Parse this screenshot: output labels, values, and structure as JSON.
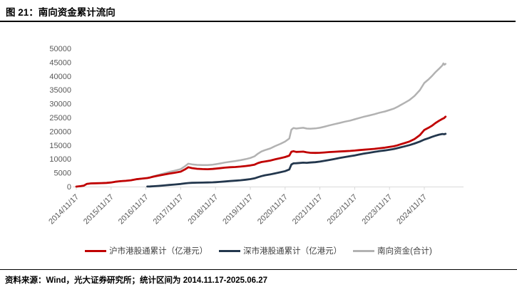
{
  "header": {
    "title": "图 21：南向资金累计流向"
  },
  "footer": {
    "text": "资料来源：Wind，光大证券研究所；统计区间为 2014.11.17-2025.06.27"
  },
  "colors": {
    "sh_red": "#C00000",
    "sz_navy": "#23374D",
    "total_gray": "#B2B2B2",
    "axis_text": "#595959",
    "axis_line": "#D9D9D9",
    "rule_black": "#000000"
  },
  "legend": {
    "items": [
      {
        "label": "沪市港股通累计（亿港元）",
        "color": "#C00000"
      },
      {
        "label": "深市港股通累计（亿港元）",
        "color": "#23374D"
      },
      {
        "label": "南向资金(合计)",
        "color": "#B2B2B2"
      }
    ]
  },
  "chart_data": {
    "type": "line",
    "title": "南向资金累计流向",
    "xlabel": "",
    "ylabel": "",
    "ylim": [
      0,
      50000
    ],
    "yticks": [
      0,
      5000,
      10000,
      15000,
      20000,
      25000,
      30000,
      35000,
      40000,
      45000,
      50000
    ],
    "x_range_years": [
      2014.82,
      2025.6
    ],
    "xtick_positions": [
      2014.88,
      2015.88,
      2016.88,
      2017.88,
      2018.88,
      2019.88,
      2020.88,
      2021.88,
      2022.88,
      2023.88,
      2024.88
    ],
    "xtick_labels": [
      "2014/11/17",
      "2015/11/17",
      "2016/11/17",
      "2017/11/17",
      "2018/11/17",
      "2019/11/17",
      "2020/11/17",
      "2021/11/17",
      "2022/11/17",
      "2023/11/17",
      "2024/11/17"
    ],
    "grid": false,
    "legend_position": "bottom",
    "unit": "亿港元",
    "series": [
      {
        "name": "南向资金(合计)",
        "color": "#B2B2B2",
        "width": 2.5,
        "points": [
          [
            2014.88,
            0
          ],
          [
            2015.0,
            150
          ],
          [
            2015.1,
            350
          ],
          [
            2015.18,
            950
          ],
          [
            2015.3,
            1150
          ],
          [
            2015.45,
            1200
          ],
          [
            2015.6,
            1250
          ],
          [
            2015.75,
            1350
          ],
          [
            2015.88,
            1500
          ],
          [
            2016.0,
            1750
          ],
          [
            2016.15,
            1950
          ],
          [
            2016.3,
            2100
          ],
          [
            2016.45,
            2300
          ],
          [
            2016.6,
            2650
          ],
          [
            2016.75,
            2850
          ],
          [
            2016.92,
            3120
          ],
          [
            2017.0,
            3360
          ],
          [
            2017.1,
            3730
          ],
          [
            2017.25,
            4260
          ],
          [
            2017.4,
            4770
          ],
          [
            2017.55,
            5300
          ],
          [
            2017.7,
            5760
          ],
          [
            2017.88,
            6350
          ],
          [
            2018.0,
            7350
          ],
          [
            2018.1,
            8300
          ],
          [
            2018.2,
            8060
          ],
          [
            2018.35,
            7870
          ],
          [
            2018.5,
            7800
          ],
          [
            2018.65,
            7800
          ],
          [
            2018.8,
            7950
          ],
          [
            2018.88,
            8100
          ],
          [
            2019.0,
            8350
          ],
          [
            2019.15,
            8700
          ],
          [
            2019.3,
            9000
          ],
          [
            2019.45,
            9250
          ],
          [
            2019.6,
            9550
          ],
          [
            2019.75,
            9950
          ],
          [
            2019.88,
            10350
          ],
          [
            2020.0,
            10950
          ],
          [
            2020.1,
            11900
          ],
          [
            2020.2,
            12700
          ],
          [
            2020.3,
            13200
          ],
          [
            2020.45,
            13800
          ],
          [
            2020.6,
            14700
          ],
          [
            2020.75,
            15500
          ],
          [
            2020.88,
            16300
          ],
          [
            2021.0,
            17400
          ],
          [
            2021.06,
            20600
          ],
          [
            2021.12,
            21200
          ],
          [
            2021.2,
            21000
          ],
          [
            2021.3,
            21150
          ],
          [
            2021.4,
            21300
          ],
          [
            2021.5,
            21000
          ],
          [
            2021.6,
            20950
          ],
          [
            2021.75,
            21050
          ],
          [
            2021.88,
            21300
          ],
          [
            2022.0,
            21650
          ],
          [
            2022.15,
            22150
          ],
          [
            2022.3,
            22600
          ],
          [
            2022.45,
            23050
          ],
          [
            2022.6,
            23500
          ],
          [
            2022.75,
            23900
          ],
          [
            2022.88,
            24350
          ],
          [
            2023.0,
            24800
          ],
          [
            2023.15,
            25300
          ],
          [
            2023.3,
            25750
          ],
          [
            2023.45,
            26200
          ],
          [
            2023.6,
            26750
          ],
          [
            2023.75,
            27200
          ],
          [
            2023.88,
            27700
          ],
          [
            2024.0,
            28200
          ],
          [
            2024.1,
            28800
          ],
          [
            2024.2,
            29500
          ],
          [
            2024.3,
            30200
          ],
          [
            2024.45,
            31300
          ],
          [
            2024.6,
            32800
          ],
          [
            2024.75,
            34900
          ],
          [
            2024.88,
            37500
          ],
          [
            2025.0,
            38800
          ],
          [
            2025.1,
            40000
          ],
          [
            2025.2,
            41400
          ],
          [
            2025.3,
            42600
          ],
          [
            2025.4,
            43900
          ],
          [
            2025.43,
            44600
          ],
          [
            2025.46,
            44100
          ],
          [
            2025.49,
            44400
          ]
        ]
      },
      {
        "name": "深市港股通累计（亿港元）",
        "color": "#23374D",
        "width": 2.8,
        "points": [
          [
            2016.92,
            20
          ],
          [
            2017.0,
            60
          ],
          [
            2017.1,
            130
          ],
          [
            2017.25,
            260
          ],
          [
            2017.4,
            420
          ],
          [
            2017.55,
            600
          ],
          [
            2017.7,
            760
          ],
          [
            2017.88,
            950
          ],
          [
            2018.0,
            1150
          ],
          [
            2018.1,
            1300
          ],
          [
            2018.2,
            1360
          ],
          [
            2018.35,
            1420
          ],
          [
            2018.5,
            1450
          ],
          [
            2018.65,
            1500
          ],
          [
            2018.8,
            1550
          ],
          [
            2018.88,
            1600
          ],
          [
            2019.0,
            1700
          ],
          [
            2019.15,
            1850
          ],
          [
            2019.3,
            2000
          ],
          [
            2019.45,
            2150
          ],
          [
            2019.6,
            2300
          ],
          [
            2019.75,
            2500
          ],
          [
            2019.88,
            2700
          ],
          [
            2020.0,
            3000
          ],
          [
            2020.1,
            3400
          ],
          [
            2020.2,
            3800
          ],
          [
            2020.3,
            4100
          ],
          [
            2020.45,
            4400
          ],
          [
            2020.6,
            4800
          ],
          [
            2020.75,
            5200
          ],
          [
            2020.88,
            5600
          ],
          [
            2021.0,
            6200
          ],
          [
            2021.06,
            8000
          ],
          [
            2021.12,
            8400
          ],
          [
            2021.2,
            8450
          ],
          [
            2021.3,
            8550
          ],
          [
            2021.4,
            8650
          ],
          [
            2021.5,
            8600
          ],
          [
            2021.6,
            8700
          ],
          [
            2021.75,
            8850
          ],
          [
            2021.88,
            9050
          ],
          [
            2022.0,
            9300
          ],
          [
            2022.15,
            9650
          ],
          [
            2022.3,
            10000
          ],
          [
            2022.45,
            10350
          ],
          [
            2022.6,
            10700
          ],
          [
            2022.75,
            11000
          ],
          [
            2022.88,
            11300
          ],
          [
            2023.0,
            11600
          ],
          [
            2023.15,
            11950
          ],
          [
            2023.3,
            12250
          ],
          [
            2023.45,
            12550
          ],
          [
            2023.6,
            12850
          ],
          [
            2023.75,
            13100
          ],
          [
            2023.88,
            13350
          ],
          [
            2024.0,
            13600
          ],
          [
            2024.1,
            13900
          ],
          [
            2024.2,
            14200
          ],
          [
            2024.3,
            14500
          ],
          [
            2024.45,
            15000
          ],
          [
            2024.6,
            15600
          ],
          [
            2024.75,
            16300
          ],
          [
            2024.88,
            17000
          ],
          [
            2025.0,
            17500
          ],
          [
            2025.1,
            18000
          ],
          [
            2025.2,
            18400
          ],
          [
            2025.3,
            18800
          ],
          [
            2025.4,
            19050
          ],
          [
            2025.45,
            18950
          ],
          [
            2025.49,
            19100
          ]
        ]
      },
      {
        "name": "沪市港股通累计（亿港元）",
        "color": "#C00000",
        "width": 2.8,
        "points": [
          [
            2014.88,
            0
          ],
          [
            2015.0,
            150
          ],
          [
            2015.1,
            350
          ],
          [
            2015.18,
            950
          ],
          [
            2015.3,
            1150
          ],
          [
            2015.45,
            1200
          ],
          [
            2015.6,
            1250
          ],
          [
            2015.75,
            1350
          ],
          [
            2015.88,
            1500
          ],
          [
            2016.0,
            1750
          ],
          [
            2016.15,
            1950
          ],
          [
            2016.3,
            2100
          ],
          [
            2016.45,
            2300
          ],
          [
            2016.6,
            2650
          ],
          [
            2016.75,
            2850
          ],
          [
            2016.92,
            3100
          ],
          [
            2017.0,
            3300
          ],
          [
            2017.1,
            3600
          ],
          [
            2017.25,
            4000
          ],
          [
            2017.4,
            4350
          ],
          [
            2017.55,
            4700
          ],
          [
            2017.7,
            5000
          ],
          [
            2017.88,
            5400
          ],
          [
            2018.0,
            6200
          ],
          [
            2018.1,
            7000
          ],
          [
            2018.2,
            6700
          ],
          [
            2018.35,
            6450
          ],
          [
            2018.5,
            6350
          ],
          [
            2018.65,
            6300
          ],
          [
            2018.8,
            6400
          ],
          [
            2018.88,
            6500
          ],
          [
            2019.0,
            6650
          ],
          [
            2019.15,
            6850
          ],
          [
            2019.3,
            7000
          ],
          [
            2019.45,
            7100
          ],
          [
            2019.6,
            7250
          ],
          [
            2019.75,
            7450
          ],
          [
            2019.88,
            7650
          ],
          [
            2020.0,
            7950
          ],
          [
            2020.1,
            8500
          ],
          [
            2020.2,
            8900
          ],
          [
            2020.3,
            9100
          ],
          [
            2020.45,
            9400
          ],
          [
            2020.6,
            9900
          ],
          [
            2020.75,
            10300
          ],
          [
            2020.88,
            10700
          ],
          [
            2021.0,
            11200
          ],
          [
            2021.06,
            12600
          ],
          [
            2021.12,
            12800
          ],
          [
            2021.2,
            12550
          ],
          [
            2021.3,
            12600
          ],
          [
            2021.4,
            12650
          ],
          [
            2021.5,
            12400
          ],
          [
            2021.6,
            12250
          ],
          [
            2021.75,
            12200
          ],
          [
            2021.88,
            12250
          ],
          [
            2022.0,
            12350
          ],
          [
            2022.15,
            12500
          ],
          [
            2022.3,
            12600
          ],
          [
            2022.45,
            12700
          ],
          [
            2022.6,
            12800
          ],
          [
            2022.75,
            12900
          ],
          [
            2022.88,
            13050
          ],
          [
            2023.0,
            13200
          ],
          [
            2023.15,
            13350
          ],
          [
            2023.3,
            13500
          ],
          [
            2023.45,
            13650
          ],
          [
            2023.6,
            13900
          ],
          [
            2023.75,
            14100
          ],
          [
            2023.88,
            14350
          ],
          [
            2024.0,
            14600
          ],
          [
            2024.1,
            14900
          ],
          [
            2024.2,
            15300
          ],
          [
            2024.3,
            15700
          ],
          [
            2024.45,
            16300
          ],
          [
            2024.6,
            17200
          ],
          [
            2024.75,
            18600
          ],
          [
            2024.88,
            20500
          ],
          [
            2025.0,
            21300
          ],
          [
            2025.1,
            22000
          ],
          [
            2025.2,
            23000
          ],
          [
            2025.3,
            23800
          ],
          [
            2025.4,
            24500
          ],
          [
            2025.45,
            24800
          ],
          [
            2025.49,
            25300
          ]
        ]
      }
    ]
  }
}
